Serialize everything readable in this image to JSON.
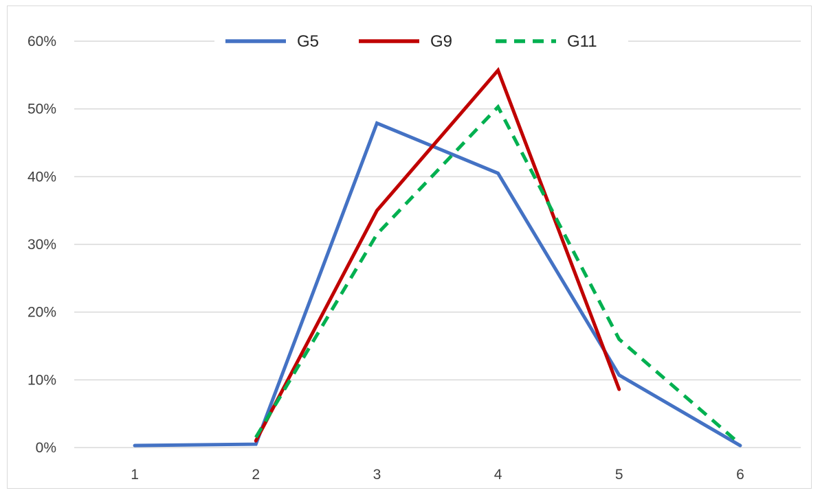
{
  "chart_data": {
    "type": "line",
    "title": "",
    "xlabel": "",
    "ylabel": "",
    "categories": [
      "1",
      "2",
      "3",
      "4",
      "5",
      "6"
    ],
    "x": [
      1,
      2,
      3,
      4,
      5,
      6
    ],
    "ylim": [
      0,
      0.6
    ],
    "yticks": [
      0,
      0.1,
      0.2,
      0.3,
      0.4,
      0.5,
      0.6
    ],
    "ytick_labels": [
      "0%",
      "10%",
      "20%",
      "30%",
      "40%",
      "50%",
      "60%"
    ],
    "grid": "horizontal",
    "legend_position": "top",
    "series": [
      {
        "name": "G5",
        "color": "#4472c4",
        "dash": "solid",
        "values": [
          0.003,
          0.005,
          0.479,
          0.405,
          0.107,
          0.003
        ]
      },
      {
        "name": "G9",
        "color": "#c00000",
        "dash": "solid",
        "values": [
          null,
          0.01,
          0.35,
          0.557,
          0.086,
          null
        ]
      },
      {
        "name": "G11",
        "color": "#00b050",
        "dash": "dashed",
        "values": [
          null,
          0.015,
          0.315,
          0.503,
          0.16,
          0.005
        ]
      }
    ]
  }
}
